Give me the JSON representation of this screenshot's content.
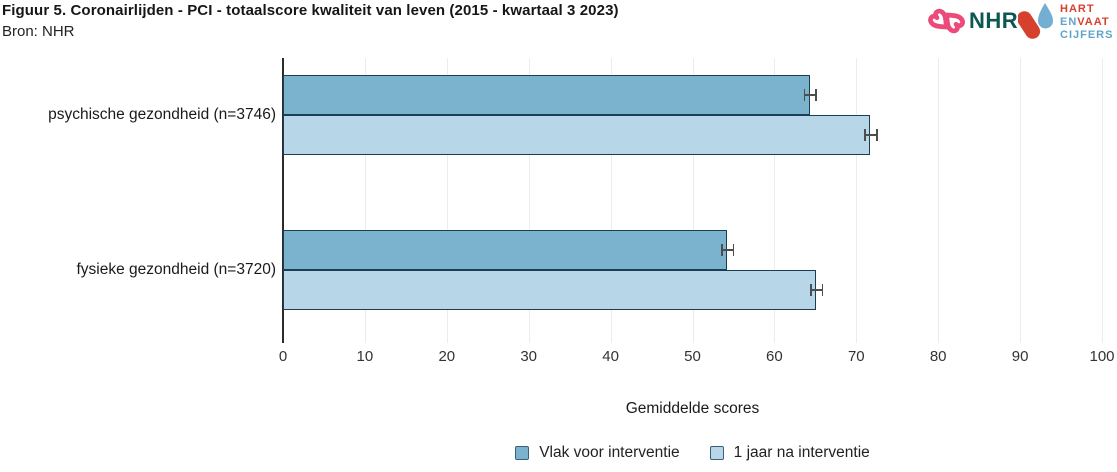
{
  "header": {
    "title": "Figuur 5. Coronairlijden - PCI - totaalscore kwaliteit van leven (2015 - kwartaal 3 2023)",
    "source": "Bron: NHR"
  },
  "logos": {
    "nhr": {
      "text": "NHR",
      "symbol": "nhr-hearts-knot",
      "symbol_color": "#ec4a7b",
      "text_color": "#0d5751"
    },
    "hartenvaatcijfers": {
      "line1": "HART",
      "line2_part1": "EN",
      "line2_part2": "VAAT",
      "line3": "CIJFERS",
      "red": "#d6402e",
      "blue": "#5fa5c9"
    }
  },
  "chart_data": {
    "type": "bar",
    "orientation": "horizontal",
    "title": "Figuur 5. Coronairlijden - PCI - totaalscore kwaliteit van leven (2015 - kwartaal 3 2023)",
    "categories": [
      "psychische gezondheid (n=3746)",
      "fysieke gezondheid (n=3720)"
    ],
    "series": [
      {
        "name": "Vlak voor interventie",
        "values": [
          64.3,
          54.2
        ],
        "errors": [
          0.7,
          0.7
        ],
        "color": "#7bb3cf"
      },
      {
        "name": "1 jaar na interventie",
        "values": [
          71.7,
          65.1
        ],
        "errors": [
          0.7,
          0.7
        ],
        "color": "#b7d7e8"
      }
    ],
    "xlabel": "Gemiddelde scores",
    "xlim": [
      0,
      100
    ],
    "xticks": [
      0,
      10,
      20,
      30,
      40,
      50,
      60,
      70,
      80,
      90,
      100
    ],
    "grid": "vertical",
    "legend_position": "bottom",
    "bar_border_color": "#1b3e52",
    "error_bar_color": "#4d4d4d"
  }
}
